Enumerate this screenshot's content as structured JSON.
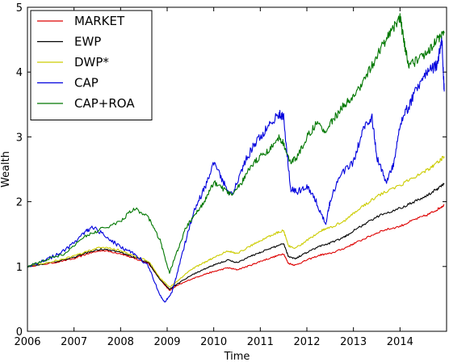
{
  "chart_data": {
    "type": "line",
    "title": "",
    "xlabel": "Time",
    "ylabel": "Wealth",
    "xlim": [
      2006,
      2015
    ],
    "ylim": [
      0,
      5
    ],
    "x_ticks": [
      2006,
      2007,
      2008,
      2009,
      2010,
      2011,
      2012,
      2013,
      2014
    ],
    "y_ticks": [
      0,
      1,
      2,
      3,
      4,
      5
    ],
    "grid": false,
    "legend_position": "top-left",
    "series": [
      {
        "name": "MARKET",
        "color": "#dd0000",
        "x": [
          2006.0,
          2006.5,
          2007.0,
          2007.3,
          2007.6,
          2008.0,
          2008.3,
          2008.6,
          2008.85,
          2009.05,
          2009.2,
          2009.5,
          2009.8,
          2010.0,
          2010.3,
          2010.5,
          2010.8,
          2011.0,
          2011.3,
          2011.5,
          2011.6,
          2011.75,
          2012.0,
          2012.3,
          2012.5,
          2012.8,
          2013.0,
          2013.3,
          2013.6,
          2014.0,
          2014.3,
          2014.6,
          2014.8,
          2014.95
        ],
        "y": [
          1.0,
          1.05,
          1.12,
          1.2,
          1.25,
          1.2,
          1.12,
          1.05,
          0.8,
          0.63,
          0.7,
          0.8,
          0.88,
          0.92,
          0.98,
          0.95,
          1.02,
          1.08,
          1.15,
          1.2,
          1.05,
          1.02,
          1.1,
          1.18,
          1.2,
          1.28,
          1.35,
          1.45,
          1.55,
          1.62,
          1.72,
          1.8,
          1.88,
          1.95
        ]
      },
      {
        "name": "EWP",
        "color": "#000000",
        "x": [
          2006.0,
          2006.5,
          2007.0,
          2007.3,
          2007.6,
          2008.0,
          2008.3,
          2008.6,
          2008.85,
          2009.05,
          2009.2,
          2009.5,
          2009.8,
          2010.0,
          2010.3,
          2010.5,
          2010.8,
          2011.0,
          2011.3,
          2011.5,
          2011.6,
          2011.75,
          2012.0,
          2012.3,
          2012.5,
          2012.8,
          2013.0,
          2013.3,
          2013.6,
          2014.0,
          2014.3,
          2014.6,
          2014.8,
          2014.95
        ],
        "y": [
          1.0,
          1.06,
          1.14,
          1.22,
          1.27,
          1.22,
          1.14,
          1.06,
          0.8,
          0.65,
          0.72,
          0.86,
          0.96,
          1.02,
          1.1,
          1.06,
          1.16,
          1.22,
          1.3,
          1.36,
          1.16,
          1.12,
          1.22,
          1.32,
          1.36,
          1.45,
          1.55,
          1.68,
          1.8,
          1.9,
          2.0,
          2.1,
          2.2,
          2.28
        ]
      },
      {
        "name": "DWP*",
        "color": "#cccc00",
        "x": [
          2006.0,
          2006.5,
          2007.0,
          2007.3,
          2007.6,
          2008.0,
          2008.3,
          2008.6,
          2008.85,
          2009.05,
          2009.2,
          2009.5,
          2009.8,
          2010.0,
          2010.3,
          2010.5,
          2010.8,
          2011.0,
          2011.3,
          2011.5,
          2011.6,
          2011.75,
          2012.0,
          2012.3,
          2012.5,
          2012.8,
          2013.0,
          2013.3,
          2013.6,
          2014.0,
          2014.3,
          2014.6,
          2014.8,
          2014.95
        ],
        "y": [
          1.0,
          1.07,
          1.16,
          1.24,
          1.3,
          1.25,
          1.16,
          1.08,
          0.82,
          0.68,
          0.76,
          0.95,
          1.06,
          1.14,
          1.24,
          1.2,
          1.32,
          1.4,
          1.5,
          1.56,
          1.32,
          1.28,
          1.4,
          1.55,
          1.6,
          1.7,
          1.82,
          1.98,
          2.12,
          2.25,
          2.38,
          2.5,
          2.6,
          2.7
        ]
      },
      {
        "name": "CAP",
        "color": "#0000dd",
        "x": [
          2006.0,
          2006.4,
          2006.8,
          2007.2,
          2007.4,
          2007.7,
          2008.0,
          2008.3,
          2008.6,
          2008.85,
          2008.95,
          2009.1,
          2009.2,
          2009.4,
          2009.6,
          2009.8,
          2010.0,
          2010.2,
          2010.4,
          2010.6,
          2010.8,
          2011.0,
          2011.2,
          2011.4,
          2011.5,
          2011.65,
          2011.8,
          2012.0,
          2012.2,
          2012.4,
          2012.5,
          2012.7,
          2013.0,
          2013.2,
          2013.4,
          2013.5,
          2013.7,
          2013.85,
          2014.0,
          2014.2,
          2014.4,
          2014.6,
          2014.8,
          2014.9,
          2014.95
        ],
        "y": [
          1.0,
          1.1,
          1.25,
          1.5,
          1.62,
          1.45,
          1.3,
          1.2,
          1.0,
          0.55,
          0.45,
          0.6,
          0.85,
          1.4,
          1.9,
          2.2,
          2.6,
          2.3,
          2.1,
          2.5,
          2.8,
          3.0,
          3.2,
          3.35,
          3.3,
          2.2,
          2.15,
          2.25,
          2.0,
          1.65,
          2.0,
          2.4,
          2.6,
          3.1,
          3.3,
          2.7,
          2.3,
          2.55,
          3.2,
          3.5,
          3.8,
          4.0,
          4.1,
          4.5,
          3.7
        ]
      },
      {
        "name": "CAP+ROA",
        "color": "#007700",
        "x": [
          2006.0,
          2006.4,
          2006.8,
          2007.2,
          2007.5,
          2008.0,
          2008.3,
          2008.6,
          2008.85,
          2009.05,
          2009.2,
          2009.4,
          2009.6,
          2009.8,
          2010.0,
          2010.2,
          2010.4,
          2010.6,
          2010.8,
          2011.0,
          2011.2,
          2011.4,
          2011.5,
          2011.65,
          2011.8,
          2012.0,
          2012.2,
          2012.4,
          2012.6,
          2012.8,
          2013.0,
          2013.2,
          2013.4,
          2013.6,
          2013.8,
          2014.0,
          2014.1,
          2014.2,
          2014.4,
          2014.6,
          2014.8,
          2014.95
        ],
        "y": [
          1.0,
          1.1,
          1.2,
          1.45,
          1.55,
          1.7,
          1.9,
          1.75,
          1.4,
          0.9,
          1.2,
          1.6,
          1.8,
          2.0,
          2.3,
          2.2,
          2.1,
          2.3,
          2.55,
          2.7,
          2.8,
          3.0,
          2.9,
          2.6,
          2.7,
          3.0,
          3.2,
          3.1,
          3.3,
          3.5,
          3.6,
          3.85,
          4.1,
          4.4,
          4.6,
          4.85,
          4.4,
          4.1,
          4.2,
          4.3,
          4.5,
          4.6
        ]
      }
    ]
  }
}
